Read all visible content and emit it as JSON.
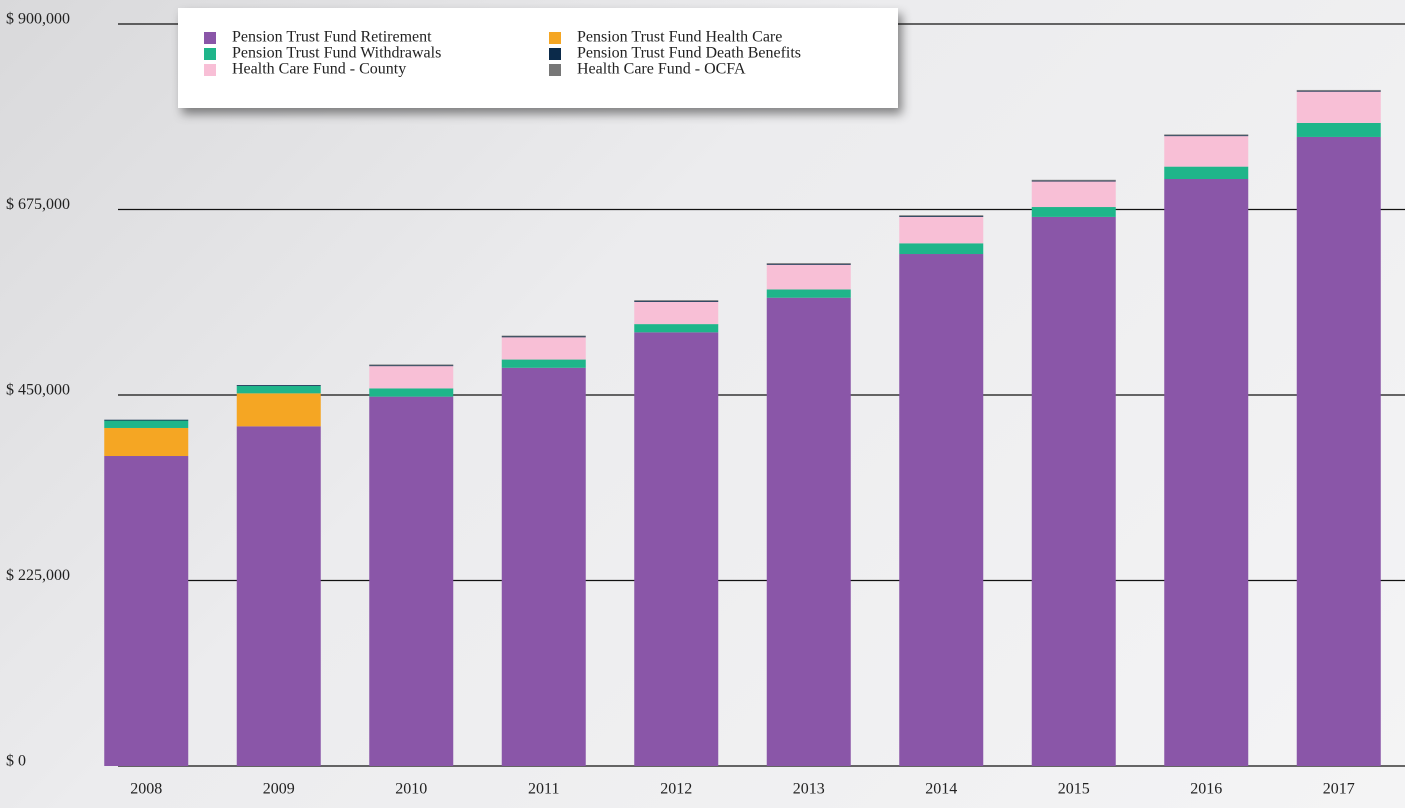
{
  "chart_data": {
    "type": "stacked_bar",
    "categories": [
      "2008",
      "2009",
      "2010",
      "2011",
      "2012",
      "2013",
      "2014",
      "2015",
      "2016",
      "2017"
    ],
    "series": [
      {
        "name": "Pension Trust Fund Retirement",
        "color": "#8a56a8",
        "values": [
          376000,
          412000,
          448000,
          483000,
          526000,
          568000,
          621000,
          666000,
          712000,
          763000
        ]
      },
      {
        "name": "Pension Trust Fund Health Care",
        "color": "#f5a623",
        "values": [
          34000,
          40000,
          0,
          0,
          0,
          0,
          0,
          0,
          0,
          0
        ]
      },
      {
        "name": "Pension Trust Fund Withdrawals",
        "color": "#1fb58a",
        "values": [
          9000,
          9000,
          10000,
          10000,
          10000,
          10000,
          13000,
          12000,
          15000,
          17000
        ]
      },
      {
        "name": "Health Care Fund - County",
        "color": "#f8bfd6",
        "values": [
          0,
          0,
          27000,
          27000,
          27000,
          30000,
          32000,
          31000,
          37000,
          38000
        ]
      },
      {
        "name": "Pension Trust Fund Death Benefits",
        "color": "#0b2a4a",
        "values": [
          1000,
          1000,
          1000,
          1000,
          1000,
          1000,
          1000,
          1000,
          1000,
          1000
        ]
      },
      {
        "name": "Health Care Fund - OCFA",
        "color": "#777777",
        "values": [
          0,
          0,
          1000,
          1000,
          1000,
          1000,
          1000,
          1000,
          1000,
          1000
        ]
      }
    ],
    "ylim": [
      0,
      900000
    ],
    "yticks": [
      {
        "value": 0,
        "label": "$ 0"
      },
      {
        "value": 225000,
        "label": "$ 225,000"
      },
      {
        "value": 450000,
        "label": "$ 450,000"
      },
      {
        "value": 675000,
        "label": "$ 675,000"
      },
      {
        "value": 900000,
        "label": "$ 900,000"
      }
    ],
    "grid": true
  }
}
